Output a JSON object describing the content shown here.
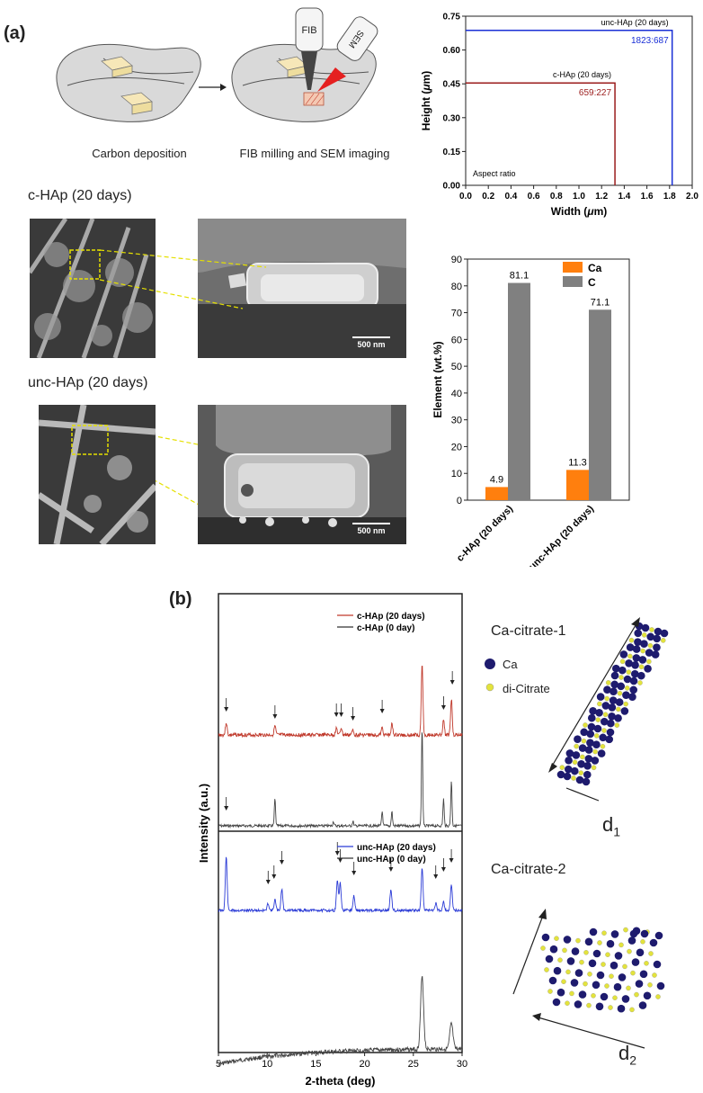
{
  "panel_a": {
    "label": "(a)",
    "schematic": {
      "step1_caption": "Carbon deposition",
      "step2_caption": "FIB milling and SEM imaging",
      "fib_label": "FIB",
      "sem_label": "SEM"
    },
    "sample1_title": "c-HAp (20 days)",
    "sample2_title": "unc-HAp (20 days)",
    "scale_bar_1": "500 nm",
    "scale_bar_2": "500 nm"
  },
  "panel_b": {
    "label": "(b)",
    "structure1_title": "Ca-citrate-1",
    "structure2_title": "Ca-citrate-2",
    "legend_ca": "Ca",
    "legend_citrate": "di-Citrate",
    "d1_main": "d",
    "d1_sub": "1",
    "d2_main": "d",
    "d2_sub": "2"
  },
  "chart_data": [
    {
      "type": "line",
      "xlabel_main": "Width (",
      "xlabel_unit": "μ",
      "xlabel_end": "m)",
      "ylabel_main": "Height (",
      "ylabel_unit": "μ",
      "ylabel_end": "m)",
      "xlim": [
        0.0,
        2.0
      ],
      "ylim": [
        0.0,
        0.75
      ],
      "xticks": [
        "0.0",
        "0.2",
        "0.4",
        "0.6",
        "0.8",
        "1.0",
        "1.2",
        "1.4",
        "1.6",
        "1.8",
        "2.0"
      ],
      "yticks": [
        "0.00",
        "0.15",
        "0.30",
        "0.45",
        "0.60",
        "0.75"
      ],
      "annotation": "Aspect ratio",
      "series": [
        {
          "name": "unc-HAp (20 days)",
          "width": 1.823,
          "height": 0.687,
          "ratio_label": "1823:687",
          "color": "#1a2fd6"
        },
        {
          "name": "c-HAp (20 days)",
          "width": 1.318,
          "height": 0.454,
          "ratio_label": "659:227",
          "color": "#9b1c1c"
        }
      ]
    },
    {
      "type": "bar",
      "ylabel": "Element (wt.%)",
      "ylim": [
        0,
        90
      ],
      "yticks": [
        "0",
        "10",
        "20",
        "30",
        "40",
        "50",
        "60",
        "70",
        "80",
        "90"
      ],
      "categories": [
        "c-HAp (20 days)",
        "unc-HAp (20 days)"
      ],
      "series": [
        {
          "name": "Ca",
          "values": [
            4.9,
            11.3
          ],
          "labels": [
            "4.9",
            "11.3"
          ],
          "color": "#ff7f0e"
        },
        {
          "name": "C",
          "values": [
            81.1,
            71.1
          ],
          "labels": [
            "81.1",
            "71.1"
          ],
          "color": "#808080"
        }
      ],
      "legend_placement": "top-right"
    },
    {
      "type": "line",
      "xlabel": "2-theta (deg)",
      "ylabel": "Intensity (a.u.)",
      "xlim": [
        5,
        30
      ],
      "xticks": [
        "5",
        "10",
        "15",
        "20",
        "25",
        "30"
      ],
      "top_legend": [
        {
          "name": "c-HAp (20 days)",
          "color": "#c0392b"
        },
        {
          "name": "c-HAp (0 day)",
          "color": "#333333"
        }
      ],
      "bottom_legend": [
        {
          "name": "unc-HAp (20 days)",
          "color": "#2b3bd6"
        },
        {
          "name": "unc-HAp (0 day)",
          "color": "#333333"
        }
      ],
      "peaks_c20": [
        5.8,
        10.8,
        17.1,
        17.6,
        18.8,
        21.8,
        22.8,
        25.9,
        28.1,
        28.9
      ],
      "peaks_c0": [
        10.8,
        16.8,
        18.8,
        21.8,
        22.8,
        25.9,
        28.1,
        28.9
      ],
      "peaks_u20": [
        5.8,
        10.1,
        10.8,
        11.5,
        17.2,
        17.5,
        18.9,
        22.7,
        25.9,
        27.3,
        28.1,
        28.9
      ],
      "peaks_u0": [
        25.9,
        28.9
      ],
      "arrows_c20": [
        5.8,
        10.8,
        17.1,
        17.6,
        18.8,
        21.8,
        28.1,
        29.0
      ],
      "arrows_u20": [
        5.8,
        10.1,
        10.7,
        11.5,
        17.2,
        17.5,
        18.9,
        22.7,
        27.3,
        28.1,
        28.9
      ]
    }
  ]
}
